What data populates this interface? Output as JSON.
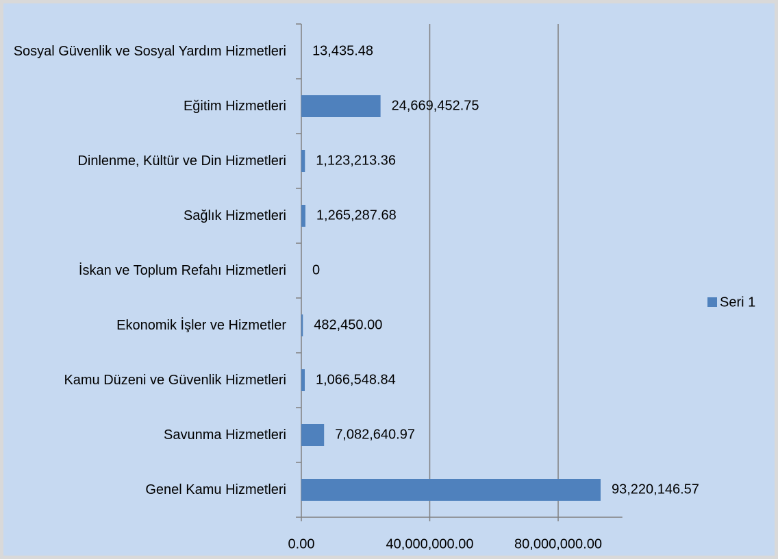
{
  "chart_data": {
    "type": "bar",
    "orientation": "horizontal",
    "categories": [
      "Genel Kamu Hizmetleri",
      "Savunma Hizmetleri",
      "Kamu Düzeni ve Güvenlik Hizmetleri",
      "Ekonomik İşler ve Hizmetler",
      "İskan ve Toplum Refahı Hizmetleri",
      "Sağlık Hizmetleri",
      "Dinlenme, Kültür ve Din Hizmetleri",
      "Eğitim Hizmetleri",
      "Sosyal Güvenlik ve Sosyal Yardım Hizmetleri"
    ],
    "series": [
      {
        "name": "Seri 1",
        "color": "#4f81bd",
        "values": [
          93220146.57,
          7082640.97,
          1066548.84,
          482450.0,
          0,
          1265287.68,
          1123213.36,
          24669452.75,
          13435.48
        ],
        "value_labels": [
          "93,220,146.57",
          "7,082,640.97",
          "1,066,548.84",
          "482,450.00",
          "0",
          "1,265,287.68",
          "1,123,213.36",
          "24,669,452.75",
          "13,435.48"
        ]
      }
    ],
    "xlim": [
      0,
      100000000
    ],
    "xticks": [
      {
        "value": 0,
        "label": "0.00"
      },
      {
        "value": 40000000,
        "label": "40,000,000.00"
      },
      {
        "value": 80000000,
        "label": "80,000,000.00"
      }
    ],
    "grid": true,
    "legend": "right"
  }
}
